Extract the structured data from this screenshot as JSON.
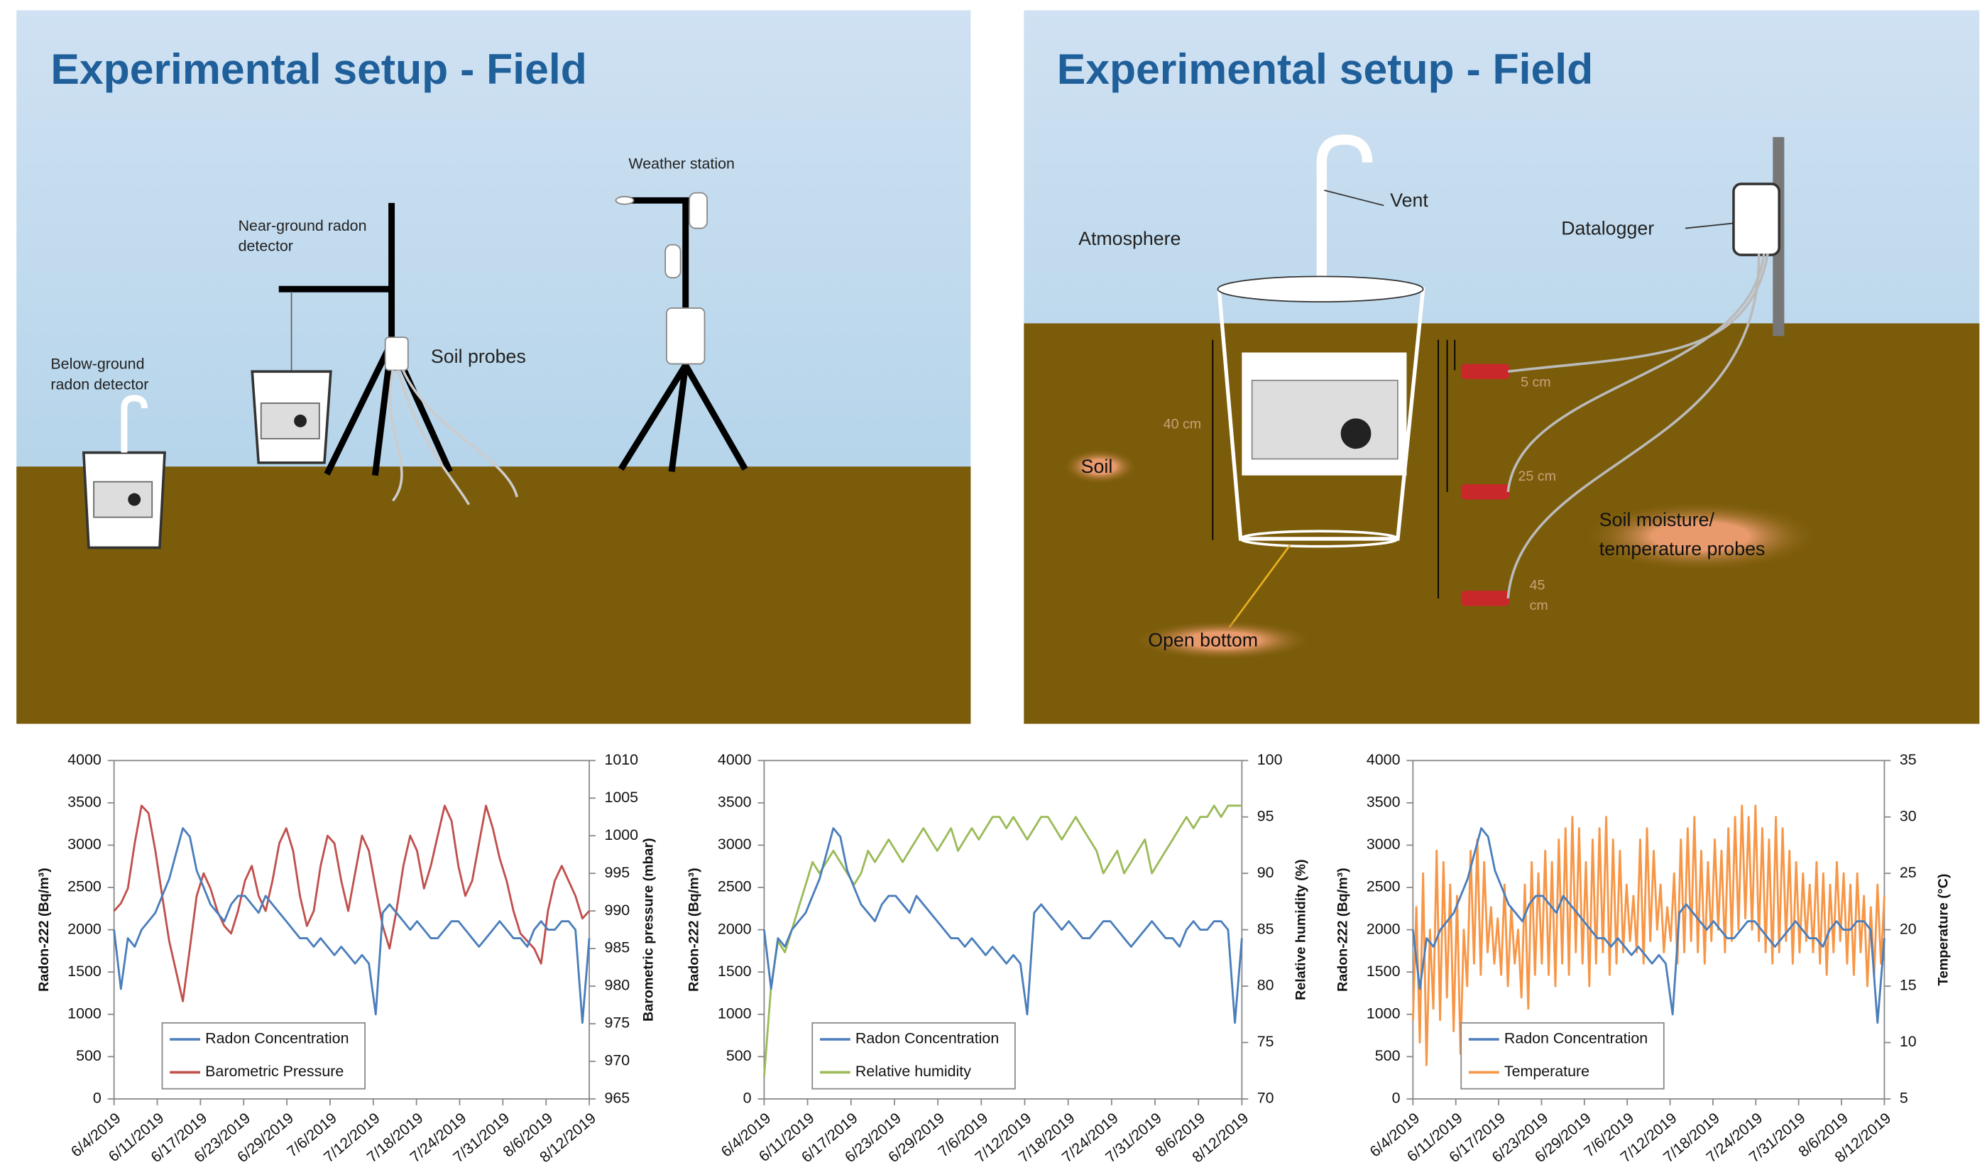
{
  "panels": [
    {
      "title": "Experimental setup - Field",
      "labels": [
        "Weather station",
        "Near-ground radon",
        "detector",
        "Below-ground",
        "radon detector",
        "Soil probes"
      ]
    },
    {
      "title": "Experimental setup - Field",
      "labels": [
        "Vent",
        "Atmosphere",
        "Datalogger",
        "40 cm",
        "5 cm",
        "25 cm",
        "45",
        "cm",
        "Soil",
        "Soil moisture/",
        "temperature probes",
        "Open bottom"
      ]
    }
  ],
  "chart_data": [
    {
      "type": "line",
      "ylabel": "Radon-222 (Bq/m³)",
      "y2label": "Barometric pressure (mbar)",
      "ylim": [
        0,
        4000
      ],
      "yticks": [
        0,
        500,
        1000,
        1500,
        2000,
        2500,
        3000,
        3500,
        4000
      ],
      "y2lim": [
        965,
        1010
      ],
      "y2ticks": [
        965,
        970,
        975,
        980,
        985,
        990,
        995,
        1000,
        1005,
        1010
      ],
      "x_tick_labels": [
        "6/4/2019",
        "6/11/2019",
        "6/17/2019",
        "6/23/2019",
        "6/29/2019",
        "7/6/2019",
        "7/12/2019",
        "7/18/2019",
        "7/24/2019",
        "7/31/2019",
        "8/6/2019",
        "8/12/2019"
      ],
      "series": [
        {
          "name": "Radon Concentration",
          "color": "#4a7ebb",
          "axis": "y",
          "values": [
            2000,
            1300,
            1900,
            1800,
            2000,
            2100,
            2200,
            2400,
            2600,
            2900,
            3200,
            3100,
            2700,
            2500,
            2300,
            2200,
            2100,
            2300,
            2400,
            2400,
            2300,
            2200,
            2400,
            2300,
            2200,
            2100,
            2000,
            1900,
            1900,
            1800,
            1900,
            1800,
            1700,
            1800,
            1700,
            1600,
            1700,
            1600,
            1000,
            2200,
            2300,
            2200,
            2100,
            2000,
            2100,
            2000,
            1900,
            1900,
            2000,
            2100,
            2100,
            2000,
            1900,
            1800,
            1900,
            2000,
            2100,
            2000,
            1900,
            1900,
            1800,
            2000,
            2100,
            2000,
            2000,
            2100,
            2100,
            2000,
            900,
            1900
          ]
        },
        {
          "name": "Barometric Pressure",
          "color": "#c0504d",
          "axis": "y2",
          "values": [
            990,
            991,
            993,
            999,
            1004,
            1003,
            998,
            992,
            986,
            982,
            978,
            985,
            992,
            995,
            993,
            990,
            988,
            987,
            990,
            994,
            996,
            992,
            990,
            994,
            999,
            1001,
            998,
            992,
            988,
            990,
            996,
            1000,
            999,
            994,
            990,
            995,
            1000,
            998,
            993,
            988,
            985,
            990,
            996,
            1000,
            998,
            993,
            996,
            1000,
            1004,
            1002,
            996,
            992,
            994,
            999,
            1004,
            1001,
            997,
            994,
            990,
            987,
            986,
            985,
            983,
            990,
            994,
            996,
            994,
            992,
            989,
            990
          ]
        }
      ]
    },
    {
      "type": "line",
      "ylabel": "Radon-222 (Bq/m³)",
      "y2label": "Relative humidity (%)",
      "ylim": [
        0,
        4000
      ],
      "yticks": [
        0,
        500,
        1000,
        1500,
        2000,
        2500,
        3000,
        3500,
        4000
      ],
      "y2lim": [
        70,
        100
      ],
      "y2ticks": [
        70,
        75,
        80,
        85,
        90,
        95,
        100
      ],
      "x_tick_labels": [
        "6/4/2019",
        "6/11/2019",
        "6/17/2019",
        "6/23/2019",
        "6/29/2019",
        "7/6/2019",
        "7/12/2019",
        "7/18/2019",
        "7/24/2019",
        "7/31/2019",
        "8/6/2019",
        "8/12/2019"
      ],
      "series": [
        {
          "name": "Radon Concentration",
          "color": "#4a7ebb",
          "axis": "y",
          "values": [
            2000,
            1300,
            1900,
            1800,
            2000,
            2100,
            2200,
            2400,
            2600,
            2900,
            3200,
            3100,
            2700,
            2500,
            2300,
            2200,
            2100,
            2300,
            2400,
            2400,
            2300,
            2200,
            2400,
            2300,
            2200,
            2100,
            2000,
            1900,
            1900,
            1800,
            1900,
            1800,
            1700,
            1800,
            1700,
            1600,
            1700,
            1600,
            1000,
            2200,
            2300,
            2200,
            2100,
            2000,
            2100,
            2000,
            1900,
            1900,
            2000,
            2100,
            2100,
            2000,
            1900,
            1800,
            1900,
            2000,
            2100,
            2000,
            1900,
            1900,
            1800,
            2000,
            2100,
            2000,
            2000,
            2100,
            2100,
            2000,
            900,
            1900
          ]
        },
        {
          "name": "Relative humidity",
          "color": "#9bbb59",
          "axis": "y2",
          "values": [
            72,
            80,
            84,
            83,
            85,
            87,
            89,
            91,
            90,
            91,
            92,
            91,
            90,
            89,
            90,
            92,
            91,
            92,
            93,
            92,
            91,
            92,
            93,
            94,
            93,
            92,
            93,
            94,
            92,
            93,
            94,
            93,
            94,
            95,
            95,
            94,
            95,
            94,
            93,
            94,
            95,
            95,
            94,
            93,
            94,
            95,
            94,
            93,
            92,
            90,
            91,
            92,
            90,
            91,
            92,
            93,
            90,
            91,
            92,
            93,
            94,
            95,
            94,
            95,
            95,
            96,
            95,
            96,
            96,
            96
          ]
        }
      ]
    },
    {
      "type": "line",
      "ylabel": "Radon-222 (Bq/m³)",
      "y2label": "Temperature (°C)",
      "ylim": [
        0,
        4000
      ],
      "yticks": [
        0,
        500,
        1000,
        1500,
        2000,
        2500,
        3000,
        3500,
        4000
      ],
      "y2lim": [
        5,
        35
      ],
      "y2ticks": [
        5,
        10,
        15,
        20,
        25,
        30,
        35
      ],
      "x_tick_labels": [
        "6/4/2019",
        "6/11/2019",
        "6/17/2019",
        "6/23/2019",
        "6/29/2019",
        "7/6/2019",
        "7/12/2019",
        "7/18/2019",
        "7/24/2019",
        "7/31/2019",
        "8/6/2019",
        "8/12/2019"
      ],
      "series": [
        {
          "name": "Radon Concentration",
          "color": "#4a7ebb",
          "axis": "y",
          "values": [
            2000,
            1300,
            1900,
            1800,
            2000,
            2100,
            2200,
            2400,
            2600,
            2900,
            3200,
            3100,
            2700,
            2500,
            2300,
            2200,
            2100,
            2300,
            2400,
            2400,
            2300,
            2200,
            2400,
            2300,
            2200,
            2100,
            2000,
            1900,
            1900,
            1800,
            1900,
            1800,
            1700,
            1800,
            1700,
            1600,
            1700,
            1600,
            1000,
            2200,
            2300,
            2200,
            2100,
            2000,
            2100,
            2000,
            1900,
            1900,
            2000,
            2100,
            2100,
            2000,
            1900,
            1800,
            1900,
            2000,
            2100,
            2000,
            1900,
            1900,
            1800,
            2000,
            2100,
            2000,
            2000,
            2100,
            2100,
            2000,
            900,
            1900
          ]
        },
        {
          "name": "Temperature",
          "color": "#f79646",
          "axis": "y2",
          "values": [
            12,
            22,
            10,
            25,
            8,
            20,
            13,
            27,
            12,
            26,
            14,
            24,
            11,
            23,
            9,
            20,
            15,
            27,
            17,
            28,
            16,
            26,
            18,
            22,
            17,
            21,
            16,
            24,
            15,
            22,
            17,
            20,
            14,
            24,
            13,
            26,
            16,
            25,
            17,
            27,
            16,
            26,
            15,
            28,
            17,
            29,
            16,
            30,
            18,
            29,
            17,
            26,
            15,
            28,
            17,
            29,
            18,
            30,
            16,
            28,
            17,
            27,
            18,
            24,
            19,
            23,
            18,
            28,
            17,
            29,
            19,
            27,
            20,
            24,
            18,
            22,
            19,
            25,
            17,
            28,
            18,
            29,
            19,
            30,
            18,
            27,
            17,
            26,
            19,
            28,
            20,
            27,
            18,
            29,
            19,
            30,
            20,
            31,
            21,
            30,
            20,
            31,
            19,
            29,
            18,
            28,
            17,
            30,
            18,
            29,
            19,
            27,
            17,
            26,
            18,
            25,
            19,
            24,
            18,
            26,
            17,
            25,
            16,
            24,
            18,
            26,
            19,
            25,
            17,
            24,
            16,
            25,
            18,
            23,
            15,
            22,
            16,
            24,
            17,
            23
          ]
        }
      ]
    }
  ]
}
